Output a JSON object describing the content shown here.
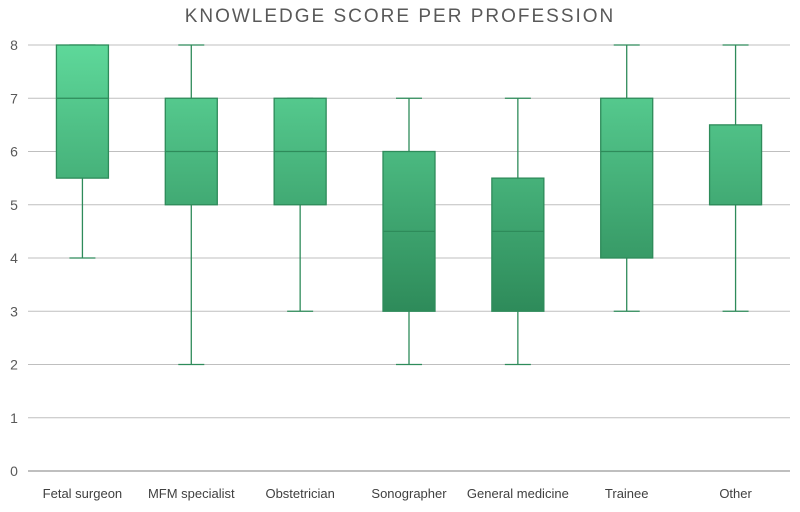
{
  "chart_data": {
    "type": "box",
    "title": "KNOWLEDGE SCORE PER PROFESSION",
    "xlabel": "",
    "ylabel": "",
    "ylim": [
      0,
      8
    ],
    "yticks": [
      "0",
      "1",
      "2",
      "3",
      "4",
      "5",
      "6",
      "7",
      "8"
    ],
    "grid": true,
    "legend": "none",
    "colors": {
      "box_top": "#5ed89a",
      "box_bottom": "#2e8b5a",
      "stroke": "#2e8b5a",
      "gridline": "#bfbfbf",
      "axis": "#7f7f7f"
    },
    "categories": [
      "Fetal surgeon",
      "MFM specialist",
      "Obstetrician",
      "Sonographer",
      "General medicine",
      "Trainee",
      "Other"
    ],
    "boxes": [
      {
        "min": 4,
        "q1": 5.5,
        "median": 7,
        "q3": 8,
        "max": 8
      },
      {
        "min": 2,
        "q1": 5,
        "median": 6,
        "q3": 7,
        "max": 8
      },
      {
        "min": 3,
        "q1": 5,
        "median": 6,
        "q3": 7,
        "max": 7
      },
      {
        "min": 2,
        "q1": 3,
        "median": 4.5,
        "q3": 6,
        "max": 7
      },
      {
        "min": 2,
        "q1": 3,
        "median": 4.5,
        "q3": 5.5,
        "max": 7
      },
      {
        "min": 3,
        "q1": 4,
        "median": 6,
        "q3": 7,
        "max": 8
      },
      {
        "min": 3,
        "q1": 5,
        "median": 5,
        "q3": 6.5,
        "max": 8
      }
    ]
  }
}
